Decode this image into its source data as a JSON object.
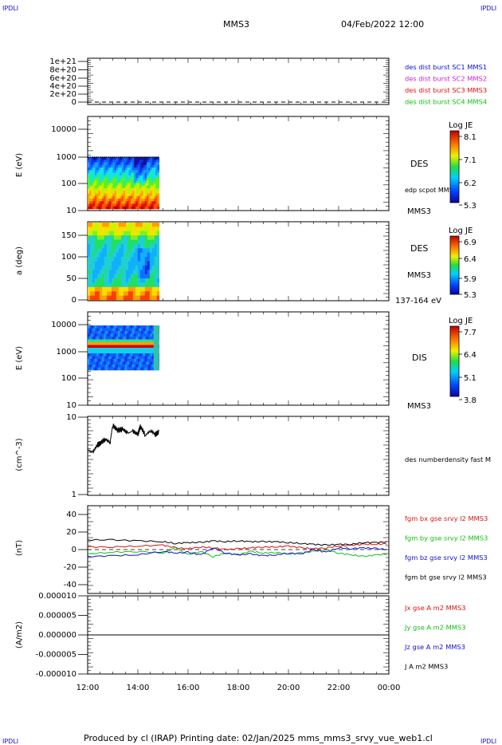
{
  "corner_labels": {
    "top_left": "IPDLI",
    "top_right": "IPDLI",
    "bottom_left": "IPDLI",
    "bottom_right": "IPDLI"
  },
  "header": {
    "spacecraft": "MMS3",
    "datetime": "04/Feb/2022 12:00"
  },
  "footer": {
    "text": "Produced by cl (IRAP)   Printing date: 02/Jan/2025   mms_mms3_srvy_vue_web1.cl"
  },
  "x_axis": {
    "ticks": [
      "12:00",
      "14:00",
      "16:00",
      "18:00",
      "20:00",
      "22:00",
      "00:00"
    ]
  },
  "colors": {
    "blue": "#1010d0",
    "magenta": "#d020d0",
    "red": "#e01010",
    "green": "#10c010",
    "black": "#000000"
  },
  "chart_data": [
    {
      "type": "line",
      "ylabel": "",
      "yticks": [
        "1e+21",
        "8e+20",
        "6e+20",
        "4e+20",
        "2e+20",
        "0"
      ],
      "ylim": [
        0,
        1.2e+21
      ],
      "legend": [
        {
          "label": "des dist burst SC1 MMS1",
          "color": "#1010d0"
        },
        {
          "label": "des dist burst SC2 MMS2",
          "color": "#d020d0"
        },
        {
          "label": "des dist burst SC3 MMS3",
          "color": "#e01010"
        },
        {
          "label": "des dist burst SC4 MMS4",
          "color": "#10c010"
        }
      ],
      "series": [
        {
          "name": "des dist burst SC3 MMS3",
          "values": [
            0,
            0
          ]
        }
      ]
    },
    {
      "type": "heatmap",
      "ylabel": "E (eV)",
      "yticks": [
        "10000",
        "1000",
        "100",
        "10"
      ],
      "species": "DES",
      "extra_label": "edp scpot MMS3",
      "spacecraft": "MMS3",
      "colorbar": {
        "title": "Log JE",
        "ticks": [
          "8.1",
          "7.1",
          "6.2",
          "5.3"
        ]
      },
      "time_range_hours": [
        12.0,
        14.85
      ]
    },
    {
      "type": "heatmap",
      "ylabel": "a (deg)",
      "yticks": [
        "150",
        "100",
        "50",
        "0"
      ],
      "species": "DES",
      "spacecraft": "MMS3",
      "energy_range": "137-164 eV",
      "colorbar": {
        "title": "Log JE",
        "ticks": [
          "6.9",
          "6.4",
          "5.9",
          "5.3"
        ]
      },
      "time_range_hours": [
        12.0,
        14.85
      ]
    },
    {
      "type": "heatmap",
      "ylabel": "E (eV)",
      "yticks": [
        "10000",
        "1000",
        "100",
        "10"
      ],
      "species": "DIS",
      "spacecraft": "MMS3",
      "colorbar": {
        "title": "Log JE",
        "ticks": [
          "7.7",
          "6.4",
          "5.1",
          "3.8"
        ]
      },
      "time_range_hours": [
        12.0,
        14.85
      ]
    },
    {
      "type": "line",
      "ylabel": "(cm^-3)",
      "yticks": [
        "10",
        "1"
      ],
      "ylim": [
        1,
        10
      ],
      "log": true,
      "legend": [
        {
          "label": "des numberdensity fast M",
          "color": "#000000"
        }
      ],
      "series": [
        {
          "name": "des numberdensity fast M",
          "x": [
            12.0,
            12.2,
            12.4,
            12.5,
            12.7,
            12.9,
            13.0,
            13.2,
            13.4,
            13.6,
            13.8,
            14.0,
            14.1,
            14.3,
            14.5,
            14.7,
            14.85
          ],
          "values": [
            3.8,
            3.5,
            4.4,
            4.6,
            5.2,
            4.7,
            7.8,
            6.8,
            7.0,
            6.2,
            6.6,
            6.0,
            7.6,
            5.8,
            6.7,
            6.0,
            6.5
          ]
        }
      ]
    },
    {
      "type": "line",
      "ylabel": "(nT)",
      "yticks": [
        "40",
        "20",
        "0",
        "-20",
        "-40"
      ],
      "ylim": [
        -50,
        50
      ],
      "legend": [
        {
          "label": "fgm bx gse srvy l2 MMS3",
          "color": "#e01010"
        },
        {
          "label": "fgm by gse srvy l2 MMS3",
          "color": "#10c010"
        },
        {
          "label": "fgm bz gse srvy l2 MMS3",
          "color": "#1010d0"
        },
        {
          "label": "fgm bt gse srvy l2 MMS3",
          "color": "#000000"
        }
      ],
      "x": [
        12,
        13,
        14,
        15,
        15.5,
        16,
        16.5,
        17,
        17.5,
        18,
        18.5,
        19,
        19.5,
        20,
        20.5,
        21,
        21.5,
        22,
        22.5,
        23,
        23.5,
        24
      ],
      "series": [
        {
          "name": "fgm bx gse srvy l2 MMS3",
          "values": [
            3,
            3,
            4,
            5,
            2,
            1,
            3,
            2,
            0,
            1,
            2,
            3,
            3,
            4,
            2,
            1,
            2,
            4,
            5,
            6,
            6,
            7
          ]
        },
        {
          "name": "fgm by gse srvy l2 MMS3",
          "values": [
            -5,
            -3,
            -2,
            -4,
            2,
            -6,
            -2,
            -8,
            -4,
            -6,
            -2,
            -4,
            -3,
            -5,
            -4,
            -2,
            0,
            -4,
            -6,
            -8,
            -6,
            -5
          ]
        },
        {
          "name": "fgm bz gse srvy l2 MMS3",
          "values": [
            -8,
            -7,
            -6,
            -2,
            -4,
            -3,
            -6,
            2,
            -4,
            -6,
            -5,
            -7,
            -6,
            -4,
            -5,
            0,
            -3,
            2,
            1,
            2,
            1,
            0
          ]
        },
        {
          "name": "fgm bt gse srvy l2 MMS3",
          "values": [
            11,
            11,
            10,
            9,
            7,
            8,
            8,
            10,
            9,
            10,
            9,
            9,
            9,
            8,
            7,
            6,
            5,
            6,
            6,
            8,
            8,
            9
          ]
        }
      ]
    },
    {
      "type": "line",
      "ylabel": "(A/m2)",
      "yticks": [
        "0.000010",
        "0.000005",
        "0.000000",
        "-0.000005",
        "-0.000010"
      ],
      "ylim": [
        -1e-05,
        1e-05
      ],
      "legend": [
        {
          "label": "Jx gse A m2 MMS3",
          "color": "#e01010"
        },
        {
          "label": "Jy gse A m2 MMS3",
          "color": "#10c010"
        },
        {
          "label": "Jz gse A m2 MMS3",
          "color": "#1010d0"
        },
        {
          "label": "J A m2 MMS3",
          "color": "#000000"
        }
      ],
      "series": [
        {
          "name": "J A m2 MMS3",
          "values": [
            0,
            0
          ]
        }
      ]
    }
  ]
}
